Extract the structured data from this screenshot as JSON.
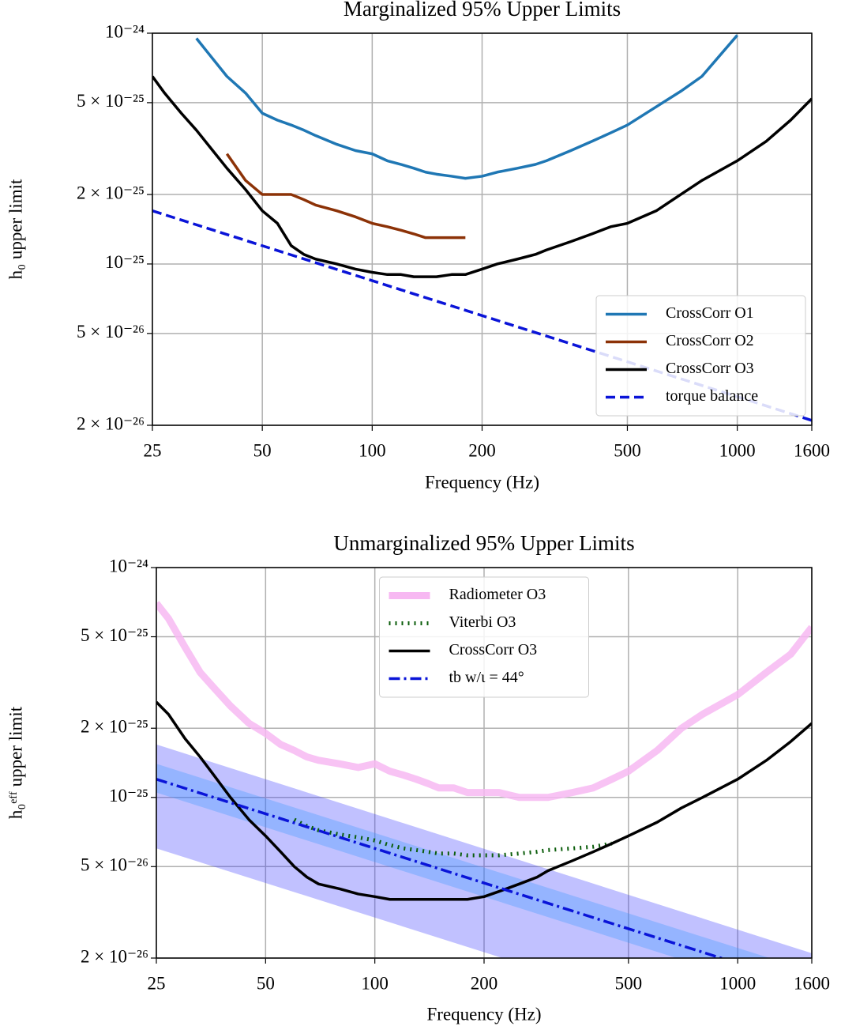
{
  "chart_data": [
    {
      "type": "line",
      "title": "Marginalized 95% Upper Limits",
      "x_label": "Frequency (Hz)",
      "y_label": "h₀ upper limit",
      "log_x": true,
      "log_y": true,
      "grid": true,
      "legend": "lower right",
      "xlim": [
        25,
        1600
      ],
      "ylim": [
        2e-26,
        1e-24
      ],
      "xticks": [
        25,
        50,
        100,
        200,
        500,
        1000,
        1600
      ],
      "yticks": [
        {
          "value": 1e-24,
          "label": "10⁻²⁴"
        },
        {
          "value": 5e-25,
          "label": "5 × 10⁻²⁵"
        },
        {
          "value": 2e-25,
          "label": "2 × 10⁻²⁵"
        },
        {
          "value": 1e-25,
          "label": "10⁻²⁵"
        },
        {
          "value": 5e-26,
          "label": "5 × 10⁻²⁶"
        },
        {
          "value": 2e-26,
          "label": "2 × 10⁻²⁶"
        }
      ],
      "x": [
        25,
        27,
        30,
        33,
        36,
        40,
        45,
        50,
        55,
        60,
        65,
        70,
        80,
        90,
        100,
        110,
        120,
        130,
        140,
        150,
        165,
        180,
        200,
        220,
        250,
        280,
        300,
        350,
        400,
        450,
        500,
        600,
        700,
        800,
        1000,
        1200,
        1400,
        1600
      ],
      "series": [
        {
          "name": "CrossCorr O1",
          "color": "#1f77b4",
          "style": "solid",
          "values": [
            null,
            null,
            null,
            9.5e-25,
            8e-25,
            6.5e-25,
            5.5e-25,
            4.5e-25,
            4.2e-25,
            4e-25,
            3.8e-25,
            3.6e-25,
            3.3e-25,
            3.1e-25,
            3e-25,
            2.8e-25,
            2.7e-25,
            2.6e-25,
            2.5e-25,
            2.45e-25,
            2.4e-25,
            2.35e-25,
            2.4e-25,
            2.5e-25,
            2.6e-25,
            2.7e-25,
            2.8e-25,
            3.1e-25,
            3.4e-25,
            3.7e-25,
            4e-25,
            4.8e-25,
            5.6e-25,
            6.5e-25,
            9.8e-25,
            null,
            null,
            null
          ]
        },
        {
          "name": "CrossCorr O2",
          "color": "#8c3207",
          "style": "solid",
          "values": [
            null,
            null,
            null,
            null,
            null,
            3e-25,
            2.3e-25,
            2e-25,
            2e-25,
            2e-25,
            1.9e-25,
            1.8e-25,
            1.7e-25,
            1.6e-25,
            1.5e-25,
            1.45e-25,
            1.4e-25,
            1.35e-25,
            1.3e-25,
            1.3e-25,
            1.3e-25,
            1.3e-25,
            null,
            null,
            null,
            null,
            null,
            null,
            null,
            null,
            null,
            null,
            null,
            null,
            null,
            null,
            null,
            null
          ]
        },
        {
          "name": "CrossCorr O3",
          "color": "#000000",
          "style": "solid",
          "values": [
            6.5e-25,
            5.5e-25,
            4.5e-25,
            3.8e-25,
            3.2e-25,
            2.6e-25,
            2.1e-25,
            1.7e-25,
            1.5e-25,
            1.2e-25,
            1.1e-25,
            1.05e-25,
            1e-25,
            9.5e-26,
            9.2e-26,
            9e-26,
            9e-26,
            8.8e-26,
            8.8e-26,
            8.8e-26,
            9e-26,
            9e-26,
            9.5e-26,
            1e-25,
            1.05e-25,
            1.1e-25,
            1.15e-25,
            1.25e-25,
            1.35e-25,
            1.45e-25,
            1.5e-25,
            1.7e-25,
            2e-25,
            2.3e-25,
            2.8e-25,
            3.4e-25,
            4.2e-25,
            5.2e-25
          ]
        },
        {
          "name": "torque balance",
          "color": "#0a14d8",
          "style": "dashed",
          "x": [
            25,
            1600
          ],
          "values": [
            1.7e-25,
            2.1e-26
          ]
        }
      ]
    },
    {
      "type": "line",
      "title": "Unmarginalized 95% Upper Limits",
      "x_label": "Frequency (Hz)",
      "y_label": "h₀ᵉᶠᶠ upper limit",
      "log_x": true,
      "log_y": true,
      "grid": true,
      "legend": "upper center",
      "xlim": [
        25,
        1600
      ],
      "ylim": [
        2e-26,
        1e-24
      ],
      "xticks": [
        25,
        50,
        100,
        200,
        500,
        1000,
        1600
      ],
      "yticks": [
        {
          "value": 1e-24,
          "label": "10⁻²⁴"
        },
        {
          "value": 5e-25,
          "label": "5 × 10⁻²⁵"
        },
        {
          "value": 2e-25,
          "label": "2 × 10⁻²⁵"
        },
        {
          "value": 1e-25,
          "label": "10⁻²⁵"
        },
        {
          "value": 5e-26,
          "label": "5 × 10⁻²⁶"
        },
        {
          "value": 2e-26,
          "label": "2 × 10⁻²⁶"
        }
      ],
      "x": [
        25,
        27,
        30,
        33,
        36,
        40,
        45,
        50,
        55,
        60,
        65,
        70,
        80,
        90,
        100,
        110,
        120,
        130,
        140,
        150,
        165,
        180,
        200,
        220,
        250,
        280,
        300,
        350,
        400,
        450,
        500,
        600,
        700,
        800,
        1000,
        1200,
        1400,
        1600
      ],
      "bands": [
        {
          "color": "#3333ff",
          "x": [
            25,
            1600
          ],
          "upper": [
            1.7e-25,
            2.1e-26
          ],
          "lower": [
            6e-26,
            7.5e-27
          ]
        },
        {
          "color": "#3399ff",
          "x": [
            25,
            1600
          ],
          "upper": [
            1.4e-25,
            1.75e-26
          ],
          "lower": [
            1.05e-25,
            1.3e-26
          ]
        }
      ],
      "series": [
        {
          "name": "Radiometer O3",
          "color": "#f7b8f2",
          "style": "wide",
          "values": [
            7e-25,
            6e-25,
            4.5e-25,
            3.5e-25,
            3e-25,
            2.5e-25,
            2.1e-25,
            1.9e-25,
            1.7e-25,
            1.6e-25,
            1.5e-25,
            1.45e-25,
            1.4e-25,
            1.35e-25,
            1.4e-25,
            1.3e-25,
            1.25e-25,
            1.2e-25,
            1.15e-25,
            1.1e-25,
            1.1e-25,
            1.05e-25,
            1.05e-25,
            1.05e-25,
            1e-25,
            1e-25,
            1e-25,
            1.05e-25,
            1.1e-25,
            1.2e-25,
            1.3e-25,
            1.6e-25,
            2e-25,
            2.3e-25,
            2.8e-25,
            3.5e-25,
            4.2e-25,
            5.5e-25
          ]
        },
        {
          "name": "Viterbi O3",
          "color": "#0b5d0b",
          "style": "dotted",
          "values": [
            null,
            null,
            null,
            null,
            null,
            null,
            null,
            null,
            null,
            8e-26,
            7.5e-26,
            7.2e-26,
            6.9e-26,
            6.7e-26,
            6.5e-26,
            6.2e-26,
            6e-26,
            5.9e-26,
            5.8e-26,
            5.7e-26,
            5.7e-26,
            5.6e-26,
            5.6e-26,
            5.6e-26,
            5.7e-26,
            5.8e-26,
            5.9e-26,
            6e-26,
            6.1e-26,
            6.3e-26,
            null,
            null,
            null,
            null,
            null,
            null,
            null,
            null
          ]
        },
        {
          "name": "CrossCorr O3",
          "color": "#000000",
          "style": "solid",
          "values": [
            2.6e-25,
            2.3e-25,
            1.8e-25,
            1.5e-25,
            1.25e-25,
            1e-25,
            8e-26,
            6.8e-26,
            5.8e-26,
            5e-26,
            4.5e-26,
            4.2e-26,
            4e-26,
            3.8e-26,
            3.7e-26,
            3.6e-26,
            3.6e-26,
            3.6e-26,
            3.6e-26,
            3.6e-26,
            3.6e-26,
            3.6e-26,
            3.7e-26,
            3.9e-26,
            4.2e-26,
            4.5e-26,
            4.8e-26,
            5.3e-26,
            5.8e-26,
            6.3e-26,
            6.8e-26,
            7.8e-26,
            9e-26,
            1e-25,
            1.2e-25,
            1.45e-25,
            1.75e-25,
            2.1e-25
          ]
        },
        {
          "name": "tb w/ι = 44°",
          "color": "#0a14d8",
          "style": "dashdot",
          "x": [
            25,
            1600
          ],
          "values": [
            1.2e-25,
            1.5e-26
          ]
        }
      ]
    }
  ]
}
